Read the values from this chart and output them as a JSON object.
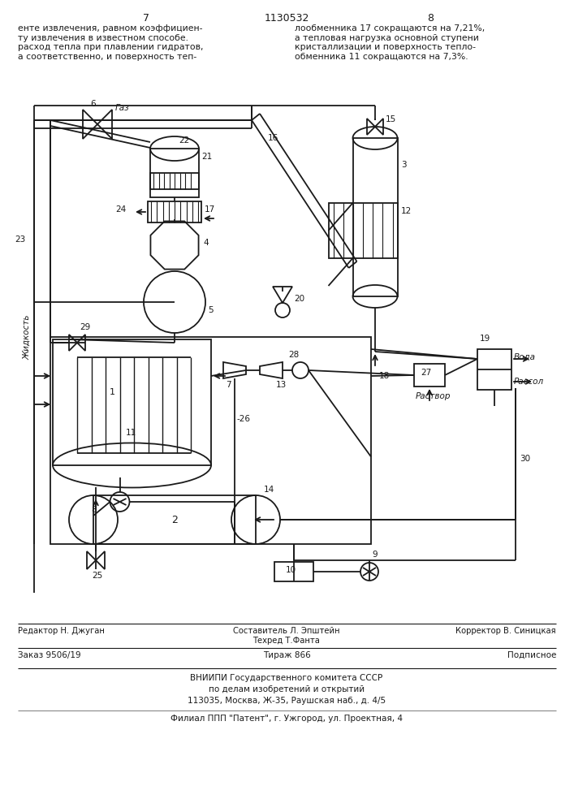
{
  "page_color": "#ffffff",
  "title": "1130532",
  "page_left": "7",
  "page_right": "8",
  "text_left": "енте извлечения, равном коэффициен-\nту извлечения в известном способе.\nрасход тепла при плавлении гидратов,\nа соответственно, и поверхность теп-",
  "text_right": "лообменника 17 сокращаются на 7,21%,\nа тепловая нагрузка основной ступени\nкристаллизации и поверхность тепло-\nобменника 11 сокращаются на 7,3%.",
  "footer_line1_left": "Редактор Н. Джуган",
  "footer_line1_center": "Составитель Л. Эпштейн\nТехред Т.Фанта",
  "footer_line1_right": "Корректор В. Синицкая",
  "footer_line2_left": "Заказ 9506/19",
  "footer_line2_center": "Тираж 866",
  "footer_line2_right": "Подписное",
  "footer_line3": "ВНИИПИ Государственного комитета СССР",
  "footer_line4": "по делам изобретений и открытий",
  "footer_line5": "113035, Москва, Ж-35, Раушская наб., д. 4/5",
  "footer_line6": "Филиал ППП \"Патент\", г. Ужгород, ул. Проектная, 4"
}
